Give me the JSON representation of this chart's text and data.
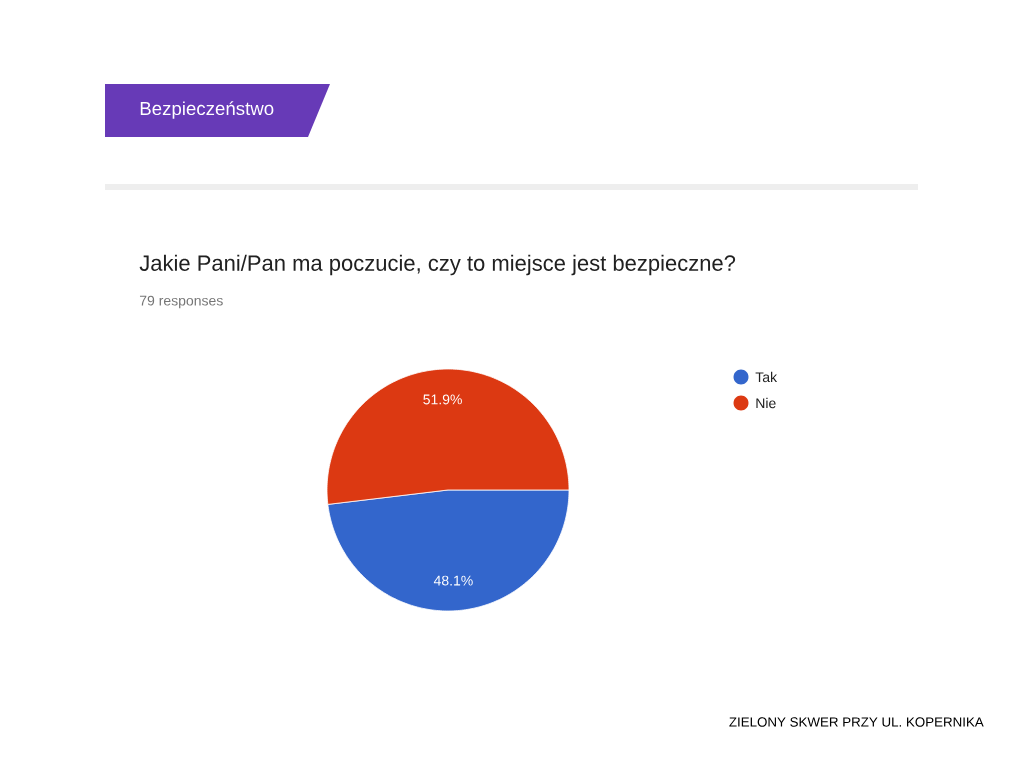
{
  "chart_data": {
    "type": "pie",
    "title": "Jakie Pani/Pan ma poczucie, czy to miejsce jest bezpieczne?",
    "subtitle": "79 responses",
    "annotations": [
      "Bezpieczeństwo",
      "ZIELONY SKWER PRZY UL. KOPERNIKA"
    ],
    "categories": [
      "Tak",
      "Nie"
    ],
    "values": [
      48.1,
      51.9
    ],
    "colors": [
      "#3366cc",
      "#dc3912"
    ],
    "value_labels": [
      "48.1%",
      "51.9%"
    ],
    "legend": "top right"
  }
}
